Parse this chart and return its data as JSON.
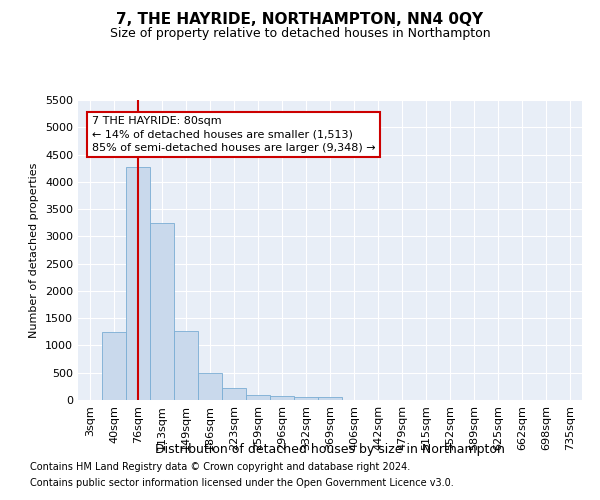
{
  "title": "7, THE HAYRIDE, NORTHAMPTON, NN4 0QY",
  "subtitle": "Size of property relative to detached houses in Northampton",
  "xlabel": "Distribution of detached houses by size in Northampton",
  "ylabel": "Number of detached properties",
  "bar_color": "#c9d9ec",
  "bar_edge_color": "#7aadd4",
  "background_color": "#e8eef7",
  "grid_color": "#ffffff",
  "annotation_box_color": "#cc0000",
  "property_line_color": "#cc0000",
  "fig_background": "#ffffff",
  "categories": [
    "3sqm",
    "40sqm",
    "76sqm",
    "113sqm",
    "149sqm",
    "186sqm",
    "223sqm",
    "259sqm",
    "296sqm",
    "332sqm",
    "369sqm",
    "406sqm",
    "442sqm",
    "479sqm",
    "515sqm",
    "552sqm",
    "589sqm",
    "625sqm",
    "662sqm",
    "698sqm",
    "735sqm"
  ],
  "values": [
    0,
    1250,
    4280,
    3250,
    1270,
    490,
    220,
    100,
    70,
    60,
    50,
    0,
    0,
    0,
    0,
    0,
    0,
    0,
    0,
    0,
    0
  ],
  "ylim": [
    0,
    5500
  ],
  "yticks": [
    0,
    500,
    1000,
    1500,
    2000,
    2500,
    3000,
    3500,
    4000,
    4500,
    5000,
    5500
  ],
  "property_bin_index": 2,
  "annotation_text": "7 THE HAYRIDE: 80sqm\n← 14% of detached houses are smaller (1,513)\n85% of semi-detached houses are larger (9,348) →",
  "footnote1": "Contains HM Land Registry data © Crown copyright and database right 2024.",
  "footnote2": "Contains public sector information licensed under the Open Government Licence v3.0.",
  "title_fontsize": 11,
  "subtitle_fontsize": 9,
  "xlabel_fontsize": 9,
  "ylabel_fontsize": 8,
  "tick_fontsize": 8,
  "annotation_fontsize": 8,
  "footnote_fontsize": 7
}
